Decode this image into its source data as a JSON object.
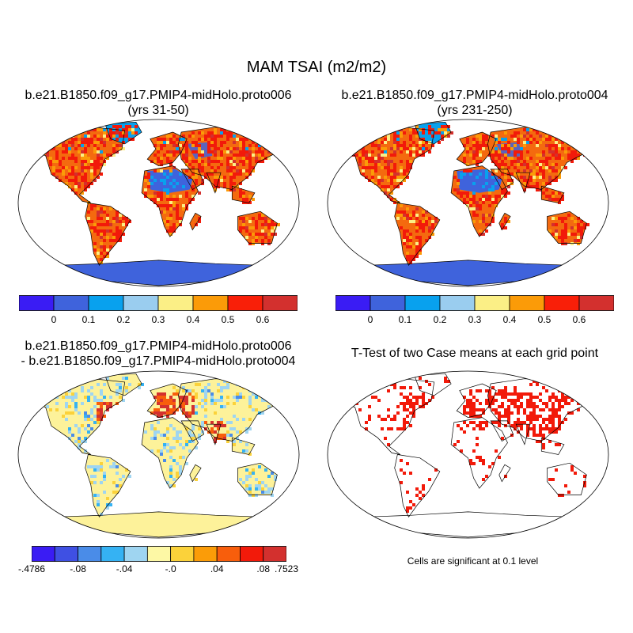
{
  "title": "MAM TSAI (m2/m2)",
  "panels": {
    "top_left": {
      "title_line1": "b.e21.B1850.f09_g17.PMIP4-midHolo.proto006",
      "title_line2": "(yrs 31-50)"
    },
    "top_right": {
      "title_line1": "b.e21.B1850.f09_g17.PMIP4-midHolo.proto004",
      "title_line2": "(yrs 231-250)"
    },
    "bottom_left": {
      "title_line1": "b.e21.B1850.f09_g17.PMIP4-midHolo.proto006",
      "title_line2": "- b.e21.B1850.f09_g17.PMIP4-midHolo.proto004"
    },
    "bottom_right": {
      "title_line1": "T-Test of two Case means at each grid point",
      "note": "Cells are significant at 0.1 level"
    }
  },
  "colorbar_abs": {
    "colors": [
      "#3a1cf4",
      "#3f63dc",
      "#08a1ee",
      "#9acdef",
      "#fbef86",
      "#fb9b08",
      "#f91f08",
      "#d3302e"
    ],
    "labels": [
      "0",
      "0.1",
      "0.2",
      "0.3",
      "0.4",
      "0.5",
      "0.6"
    ]
  },
  "colorbar_diff": {
    "colors": [
      "#3a1cf4",
      "#3f50e3",
      "#4a8ce8",
      "#35b2f3",
      "#9fd5f1",
      "#fdf8a5",
      "#fbd23a",
      "#fb9c08",
      "#f85e0c",
      "#f21a0a",
      "#d3302e"
    ],
    "labels": [
      ".-4786",
      "-.08",
      "-.04",
      "-.0",
      ".04",
      ".08",
      ".7523"
    ]
  },
  "colors": {
    "land_warm": "#f46a0f",
    "land_hot": "#f21a0a",
    "sahara": "#3f63dc",
    "antarctica": "#3f63dc",
    "diff_land": "#fdf29a",
    "signif": "#f21a0a"
  }
}
